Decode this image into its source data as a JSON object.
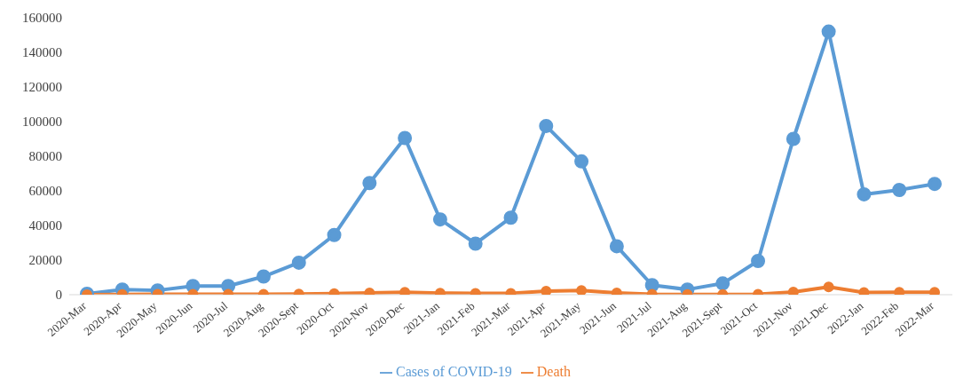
{
  "chart_data": {
    "type": "line",
    "categories": [
      "2020-Mar",
      "2020-Apr",
      "2020-May",
      "2020-Jun",
      "2020-Jul",
      "2020-Aug",
      "2020-Sept",
      "2020-Oct",
      "2020-Nov",
      "2020-Dec",
      "2021-Jan",
      "2021-Feb",
      "2021-Mar",
      "2021-Apr",
      "2021-May",
      "2021-Jun",
      "2021-Jul",
      "2021-Aug",
      "2021-Sept",
      "2021-Oct",
      "2021-Nov",
      "2021-Dec",
      "2022-Jan",
      "2022-Feb",
      "2022-Mar"
    ],
    "series": [
      {
        "name": "Cases of COVID-19",
        "color": "#5b9bd5",
        "values": [
          500,
          3000,
          2500,
          5000,
          5000,
          10500,
          18500,
          34500,
          64500,
          90500,
          43500,
          29500,
          44500,
          97500,
          77000,
          28000,
          5500,
          3000,
          6500,
          19500,
          90000,
          152000,
          58000,
          60500,
          64000
        ]
      },
      {
        "name": "Death",
        "color": "#ed7d31",
        "values": [
          0,
          100,
          200,
          300,
          200,
          200,
          400,
          600,
          1000,
          1400,
          900,
          800,
          800,
          2000,
          2400,
          1000,
          300,
          100,
          100,
          200,
          1500,
          4500,
          1300,
          1400,
          1400
        ]
      }
    ],
    "ylim": [
      0,
      160000
    ],
    "yticks": [
      0,
      20000,
      40000,
      60000,
      80000,
      100000,
      120000,
      140000,
      160000
    ],
    "grid": false,
    "legend": "bottom",
    "marker": "circle",
    "line_style": "solid"
  }
}
